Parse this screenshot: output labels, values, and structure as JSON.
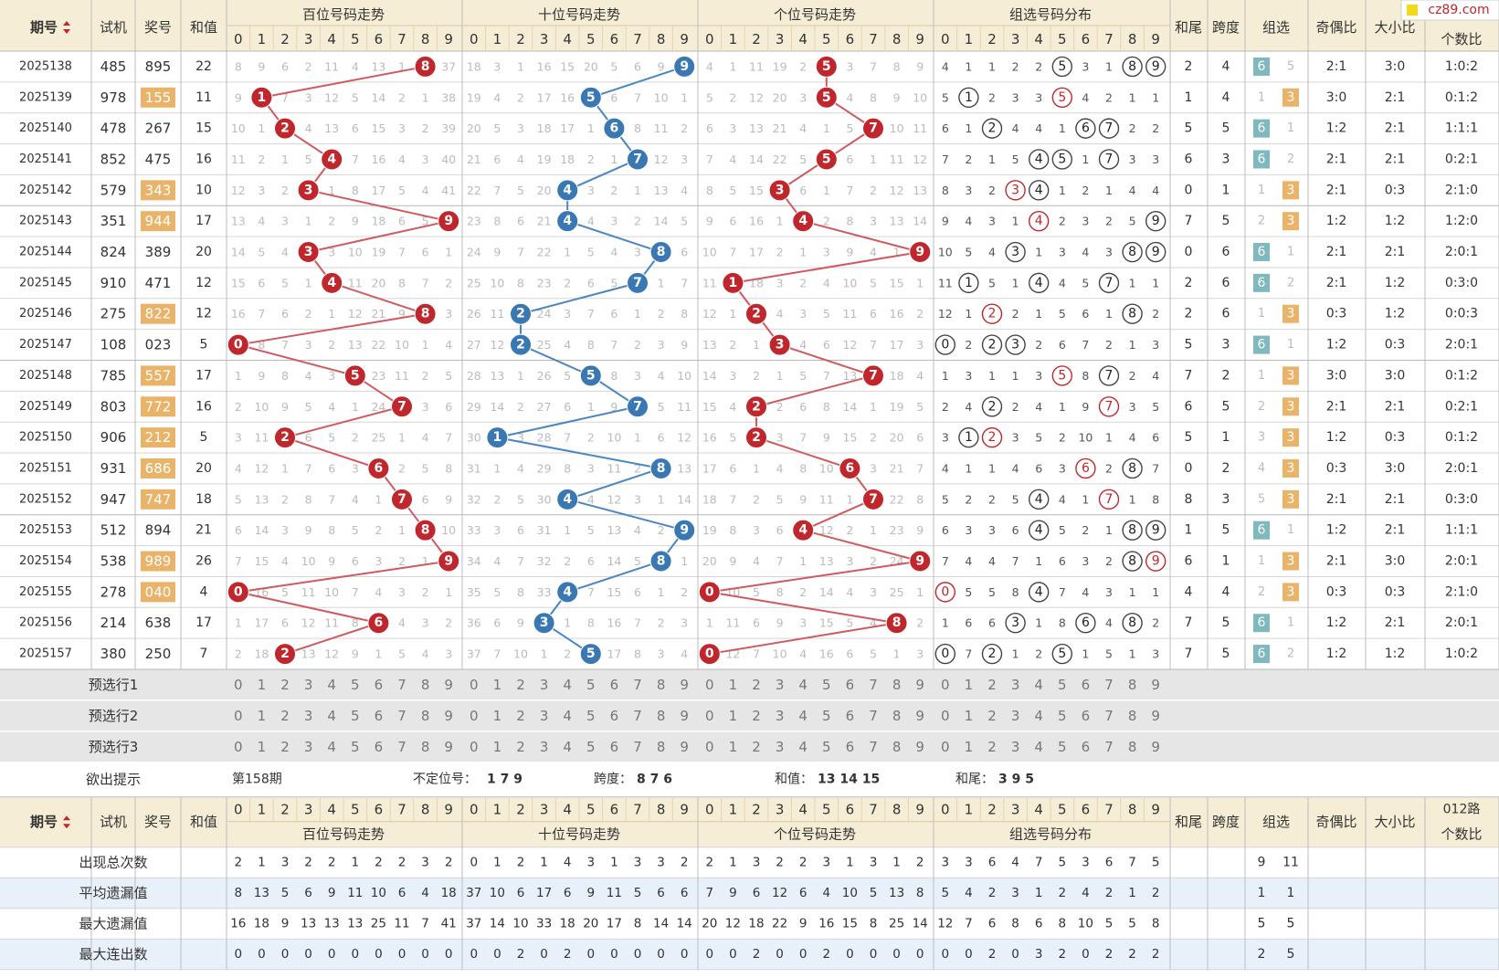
{
  "watermark": "cz89.com",
  "header": {
    "period": "期号",
    "trial": "试机",
    "prize": "奖号",
    "sum": "和值",
    "hundreds": "百位号码走势",
    "tens": "十位号码走势",
    "units": "个位号码走势",
    "group": "组选号码分布",
    "sum_tail": "和尾",
    "span": "跨度",
    "group_sel": "组选",
    "odd_even": "奇偶比",
    "big_small": "大小比",
    "road012_top": "012路",
    "road012_bottom": "个数比",
    "digits": [
      "0",
      "1",
      "2",
      "3",
      "4",
      "5",
      "6",
      "7",
      "8",
      "9"
    ]
  },
  "colors": {
    "red": "#c0272d",
    "blue": "#3a78b4",
    "header_bg": "#f5edd5",
    "highlight": "#e9b46a",
    "teal": "#7fb9be"
  },
  "rows": [
    {
      "period": "2025138",
      "trial": "485",
      "prize": "895",
      "sum": "22",
      "tail": "2",
      "span": "4",
      "g6": "6",
      "g3": "5",
      "oe": "2:1",
      "bs": "3:0",
      "r012": "1:0:2",
      "h": [
        8,
        9,
        6,
        2,
        11,
        4,
        13,
        1,
        "8",
        37
      ],
      "t": [
        18,
        3,
        1,
        16,
        15,
        20,
        5,
        6,
        9,
        "9"
      ],
      "u": [
        4,
        1,
        11,
        19,
        2,
        "5",
        3,
        7,
        8,
        9
      ],
      "g": [
        4,
        1,
        1,
        2,
        2,
        "5",
        3,
        1,
        "8",
        "9"
      ]
    },
    {
      "period": "2025139",
      "trial": "978",
      "prize": "155",
      "sum": "11",
      "tail": "1",
      "span": "4",
      "g6": "1",
      "g3": "3",
      "oe": "3:0",
      "bs": "2:1",
      "r012": "0:1:2",
      "h": [
        9,
        "1",
        7,
        3,
        12,
        5,
        14,
        2,
        1,
        38
      ],
      "t": [
        19,
        4,
        2,
        17,
        16,
        "5",
        6,
        7,
        10,
        1
      ],
      "u": [
        5,
        2,
        12,
        20,
        3,
        "5",
        4,
        8,
        9,
        10
      ],
      "g": [
        5,
        "1",
        2,
        3,
        3,
        "5",
        4,
        2,
        1,
        1
      ]
    },
    {
      "period": "2025140",
      "trial": "478",
      "prize": "267",
      "sum": "15",
      "tail": "5",
      "span": "5",
      "g6": "6",
      "g3": "1",
      "oe": "1:2",
      "bs": "2:1",
      "r012": "1:1:1",
      "h": [
        10,
        1,
        "2",
        4,
        13,
        6,
        15,
        3,
        2,
        39
      ],
      "t": [
        20,
        5,
        3,
        18,
        17,
        1,
        "6",
        8,
        11,
        2
      ],
      "u": [
        6,
        3,
        13,
        21,
        4,
        1,
        5,
        "7",
        10,
        11
      ],
      "g": [
        6,
        1,
        "2",
        4,
        4,
        1,
        "6",
        "7",
        2,
        2
      ]
    },
    {
      "period": "2025141",
      "trial": "852",
      "prize": "475",
      "sum": "16",
      "tail": "6",
      "span": "3",
      "g6": "6",
      "g3": "2",
      "oe": "2:1",
      "bs": "2:1",
      "r012": "0:2:1",
      "h": [
        11,
        2,
        1,
        5,
        "4",
        7,
        16,
        4,
        3,
        40
      ],
      "t": [
        21,
        6,
        4,
        19,
        18,
        2,
        1,
        "7",
        12,
        3
      ],
      "u": [
        7,
        4,
        14,
        22,
        5,
        "5",
        6,
        1,
        11,
        12
      ],
      "g": [
        7,
        2,
        1,
        5,
        "4",
        "5",
        1,
        "7",
        3,
        3
      ]
    },
    {
      "period": "2025142",
      "trial": "579",
      "prize": "343",
      "sum": "10",
      "tail": "0",
      "span": "1",
      "g6": "1",
      "g3": "3",
      "oe": "2:1",
      "bs": "0:3",
      "r012": "2:1:0",
      "h": [
        12,
        3,
        2,
        "3",
        1,
        8,
        17,
        5,
        4,
        41
      ],
      "t": [
        22,
        7,
        5,
        20,
        "4",
        3,
        2,
        1,
        13,
        4
      ],
      "u": [
        8,
        5,
        15,
        "3",
        6,
        1,
        7,
        2,
        12,
        13
      ],
      "g": [
        8,
        3,
        2,
        "3",
        "4",
        1,
        2,
        1,
        4,
        4
      ]
    },
    {
      "period": "2025143",
      "trial": "351",
      "prize": "944",
      "sum": "17",
      "tail": "7",
      "span": "5",
      "g6": "2",
      "g3": "3",
      "oe": "1:2",
      "bs": "1:2",
      "r012": "1:2:0",
      "h": [
        13,
        4,
        3,
        1,
        2,
        9,
        18,
        6,
        5,
        "9"
      ],
      "t": [
        23,
        8,
        6,
        21,
        "4",
        4,
        3,
        2,
        14,
        5
      ],
      "u": [
        9,
        6,
        16,
        1,
        "4",
        2,
        8,
        3,
        13,
        14
      ],
      "g": [
        9,
        4,
        3,
        1,
        "4",
        2,
        3,
        2,
        5,
        "9"
      ]
    },
    {
      "period": "2025144",
      "trial": "824",
      "prize": "389",
      "sum": "20",
      "tail": "0",
      "span": "6",
      "g6": "6",
      "g3": "1",
      "oe": "2:1",
      "bs": "2:1",
      "r012": "2:0:1",
      "h": [
        14,
        5,
        4,
        "3",
        3,
        10,
        19,
        7,
        6,
        1
      ],
      "t": [
        24,
        9,
        7,
        22,
        1,
        5,
        4,
        3,
        "8",
        6
      ],
      "u": [
        10,
        7,
        17,
        2,
        1,
        3,
        9,
        4,
        1,
        "9"
      ],
      "g": [
        10,
        5,
        4,
        "3",
        1,
        3,
        4,
        3,
        "8",
        "9"
      ]
    },
    {
      "period": "2025145",
      "trial": "910",
      "prize": "471",
      "sum": "12",
      "tail": "2",
      "span": "6",
      "g6": "6",
      "g3": "2",
      "oe": "2:1",
      "bs": "1:2",
      "r012": "0:3:0",
      "h": [
        15,
        6,
        5,
        1,
        "4",
        11,
        20,
        8,
        7,
        2
      ],
      "t": [
        25,
        10,
        8,
        23,
        2,
        6,
        5,
        "7",
        1,
        7
      ],
      "u": [
        11,
        "1",
        18,
        3,
        2,
        4,
        10,
        5,
        15,
        1
      ],
      "g": [
        11,
        "1",
        5,
        1,
        "4",
        4,
        5,
        "7",
        1,
        1
      ]
    },
    {
      "period": "2025146",
      "trial": "275",
      "prize": "822",
      "sum": "12",
      "tail": "2",
      "span": "6",
      "g6": "1",
      "g3": "3",
      "oe": "0:3",
      "bs": "1:2",
      "r012": "0:0:3",
      "h": [
        16,
        7,
        6,
        2,
        1,
        12,
        21,
        9,
        "8",
        3
      ],
      "t": [
        26,
        11,
        "2",
        24,
        3,
        7,
        6,
        1,
        2,
        8
      ],
      "u": [
        12,
        1,
        "2",
        4,
        3,
        5,
        11,
        6,
        16,
        2
      ],
      "g": [
        12,
        1,
        "2",
        2,
        1,
        5,
        6,
        1,
        "8",
        2
      ]
    },
    {
      "period": "2025147",
      "trial": "108",
      "prize": "023",
      "sum": "5",
      "tail": "5",
      "span": "3",
      "g6": "6",
      "g3": "1",
      "oe": "1:2",
      "bs": "0:3",
      "r012": "2:0:1",
      "h": [
        "0",
        8,
        7,
        3,
        2,
        13,
        22,
        10,
        1,
        4
      ],
      "t": [
        27,
        12,
        "2",
        25,
        4,
        8,
        7,
        2,
        3,
        9
      ],
      "u": [
        13,
        2,
        1,
        "3",
        4,
        6,
        12,
        7,
        17,
        3
      ],
      "g": [
        "0",
        2,
        "2",
        "3",
        2,
        6,
        7,
        2,
        1,
        3
      ]
    },
    {
      "period": "2025148",
      "trial": "785",
      "prize": "557",
      "sum": "17",
      "tail": "7",
      "span": "2",
      "g6": "1",
      "g3": "3",
      "oe": "3:0",
      "bs": "3:0",
      "r012": "0:1:2",
      "h": [
        1,
        9,
        8,
        4,
        3,
        "5",
        23,
        11,
        2,
        5
      ],
      "t": [
        28,
        13,
        1,
        26,
        5,
        "5",
        8,
        3,
        4,
        10
      ],
      "u": [
        14,
        3,
        2,
        1,
        5,
        7,
        13,
        "7",
        18,
        4
      ],
      "g": [
        1,
        3,
        1,
        1,
        3,
        "5",
        8,
        "7",
        2,
        4
      ]
    },
    {
      "period": "2025149",
      "trial": "803",
      "prize": "772",
      "sum": "16",
      "tail": "6",
      "span": "5",
      "g6": "2",
      "g3": "3",
      "oe": "2:1",
      "bs": "2:1",
      "r012": "0:2:1",
      "h": [
        2,
        10,
        9,
        5,
        4,
        1,
        24,
        "7",
        3,
        6
      ],
      "t": [
        29,
        14,
        2,
        27,
        6,
        1,
        9,
        "7",
        5,
        11
      ],
      "u": [
        15,
        4,
        "2",
        2,
        6,
        8,
        14,
        1,
        19,
        5
      ],
      "g": [
        2,
        4,
        "2",
        2,
        4,
        1,
        9,
        "7",
        3,
        5
      ]
    },
    {
      "period": "2025150",
      "trial": "906",
      "prize": "212",
      "sum": "5",
      "tail": "5",
      "span": "1",
      "g6": "3",
      "g3": "3",
      "oe": "1:2",
      "bs": "0:3",
      "r012": "0:1:2",
      "h": [
        3,
        11,
        "2",
        6,
        5,
        2,
        25,
        1,
        4,
        7
      ],
      "t": [
        30,
        "1",
        3,
        28,
        7,
        2,
        10,
        1,
        6,
        12
      ],
      "u": [
        16,
        5,
        "2",
        3,
        7,
        9,
        15,
        2,
        20,
        6
      ],
      "g": [
        3,
        "1",
        "2",
        3,
        5,
        2,
        10,
        1,
        4,
        6
      ]
    },
    {
      "period": "2025151",
      "trial": "931",
      "prize": "686",
      "sum": "20",
      "tail": "0",
      "span": "2",
      "g6": "4",
      "g3": "3",
      "oe": "0:3",
      "bs": "3:0",
      "r012": "2:0:1",
      "h": [
        4,
        12,
        1,
        7,
        6,
        3,
        "6",
        2,
        5,
        8
      ],
      "t": [
        31,
        1,
        4,
        29,
        8,
        3,
        11,
        2,
        "8",
        13
      ],
      "u": [
        17,
        6,
        1,
        4,
        8,
        10,
        "6",
        3,
        21,
        7
      ],
      "g": [
        4,
        1,
        1,
        4,
        6,
        3,
        "6",
        2,
        "8",
        7
      ]
    },
    {
      "period": "2025152",
      "trial": "947",
      "prize": "747",
      "sum": "18",
      "tail": "8",
      "span": "3",
      "g6": "5",
      "g3": "3",
      "oe": "2:1",
      "bs": "2:1",
      "r012": "0:3:0",
      "h": [
        5,
        13,
        2,
        8,
        7,
        4,
        1,
        "7",
        6,
        9
      ],
      "t": [
        32,
        2,
        5,
        30,
        "4",
        4,
        12,
        3,
        1,
        14
      ],
      "u": [
        18,
        7,
        2,
        5,
        9,
        11,
        1,
        "7",
        22,
        8
      ],
      "g": [
        5,
        2,
        2,
        5,
        "4",
        4,
        1,
        "7",
        1,
        8
      ]
    },
    {
      "period": "2025153",
      "trial": "512",
      "prize": "894",
      "sum": "21",
      "tail": "1",
      "span": "5",
      "g6": "6",
      "g3": "1",
      "oe": "1:2",
      "bs": "2:1",
      "r012": "1:1:1",
      "h": [
        6,
        14,
        3,
        9,
        8,
        5,
        2,
        1,
        "8",
        10
      ],
      "t": [
        33,
        3,
        6,
        31,
        1,
        5,
        13,
        4,
        2,
        "9"
      ],
      "u": [
        19,
        8,
        3,
        6,
        "4",
        12,
        2,
        1,
        23,
        9
      ],
      "g": [
        6,
        3,
        3,
        6,
        "4",
        5,
        2,
        1,
        "8",
        "9"
      ]
    },
    {
      "period": "2025154",
      "trial": "538",
      "prize": "989",
      "sum": "26",
      "tail": "6",
      "span": "1",
      "g6": "1",
      "g3": "3",
      "oe": "2:1",
      "bs": "3:0",
      "r012": "2:0:1",
      "h": [
        7,
        15,
        4,
        10,
        9,
        6,
        3,
        2,
        1,
        "9"
      ],
      "t": [
        34,
        4,
        7,
        32,
        2,
        6,
        14,
        5,
        "8",
        1
      ],
      "u": [
        20,
        9,
        4,
        7,
        1,
        13,
        3,
        2,
        24,
        "9"
      ],
      "g": [
        7,
        4,
        4,
        7,
        1,
        6,
        3,
        2,
        "8",
        "9"
      ]
    },
    {
      "period": "2025155",
      "trial": "278",
      "prize": "040",
      "sum": "4",
      "tail": "4",
      "span": "4",
      "g6": "2",
      "g3": "3",
      "oe": "0:3",
      "bs": "0:3",
      "r012": "2:1:0",
      "h": [
        "0",
        16,
        5,
        11,
        10,
        7,
        4,
        3,
        2,
        1
      ],
      "t": [
        35,
        5,
        8,
        33,
        "4",
        7,
        15,
        6,
        1,
        2
      ],
      "u": [
        "0",
        10,
        5,
        8,
        2,
        14,
        4,
        3,
        25,
        1
      ],
      "g": [
        "0",
        5,
        5,
        8,
        "4",
        7,
        4,
        3,
        1,
        1
      ]
    },
    {
      "period": "2025156",
      "trial": "214",
      "prize": "638",
      "sum": "17",
      "tail": "7",
      "span": "5",
      "g6": "6",
      "g3": "1",
      "oe": "1:2",
      "bs": "2:1",
      "r012": "2:0:1",
      "h": [
        1,
        17,
        6,
        12,
        11,
        8,
        "6",
        4,
        3,
        2
      ],
      "t": [
        36,
        6,
        9,
        "3",
        1,
        8,
        16,
        7,
        2,
        3
      ],
      "u": [
        1,
        11,
        6,
        9,
        3,
        15,
        5,
        4,
        "8",
        2
      ],
      "g": [
        1,
        6,
        6,
        "3",
        1,
        8,
        "6",
        4,
        "8",
        2
      ]
    },
    {
      "period": "2025157",
      "trial": "380",
      "prize": "250",
      "sum": "7",
      "tail": "7",
      "span": "5",
      "g6": "6",
      "g3": "2",
      "oe": "1:2",
      "bs": "1:2",
      "r012": "1:0:2",
      "h": [
        2,
        18,
        "2",
        13,
        12,
        9,
        1,
        5,
        4,
        3
      ],
      "t": [
        37,
        7,
        10,
        1,
        2,
        "5",
        17,
        8,
        3,
        4
      ],
      "u": [
        "0",
        12,
        7,
        10,
        4,
        16,
        6,
        5,
        1,
        3
      ],
      "g": [
        "0",
        7,
        "2",
        1,
        2,
        "5",
        1,
        5,
        1,
        3
      ]
    }
  ],
  "preselect": [
    "预选行1",
    "预选行2",
    "预选行3"
  ],
  "hint": {
    "label": "欲出提示",
    "issue": "第158期",
    "unfixed_label": "不定位号：",
    "unfixed": "1 7 9",
    "span_label": "跨度：",
    "span": "8 7 6",
    "sum_label": "和值：",
    "sum": "13 14 15",
    "tail_label": "和尾：",
    "tail": "3 9 5"
  },
  "stats": [
    {
      "label": "出现总次数",
      "h": [
        2,
        1,
        3,
        2,
        2,
        1,
        2,
        2,
        3,
        2
      ],
      "t": [
        0,
        1,
        2,
        1,
        4,
        3,
        1,
        3,
        3,
        2
      ],
      "u": [
        2,
        1,
        3,
        2,
        2,
        3,
        1,
        3,
        1,
        2
      ],
      "g": [
        3,
        3,
        6,
        4,
        7,
        5,
        3,
        6,
        7,
        5
      ],
      "g6": "9",
      "g3": "11"
    },
    {
      "label": "平均遗漏值",
      "h": [
        8,
        13,
        5,
        6,
        9,
        11,
        10,
        6,
        4,
        18
      ],
      "t": [
        37,
        10,
        6,
        17,
        6,
        9,
        11,
        5,
        6,
        6
      ],
      "u": [
        7,
        9,
        6,
        12,
        6,
        4,
        10,
        5,
        13,
        8
      ],
      "g": [
        5,
        4,
        2,
        3,
        1,
        2,
        4,
        2,
        1,
        2
      ],
      "g6": "1",
      "g3": "1"
    },
    {
      "label": "最大遗漏值",
      "h": [
        16,
        18,
        9,
        13,
        13,
        13,
        25,
        11,
        7,
        41
      ],
      "t": [
        37,
        14,
        10,
        33,
        18,
        20,
        17,
        8,
        14,
        14
      ],
      "u": [
        20,
        12,
        18,
        22,
        9,
        16,
        15,
        8,
        25,
        14
      ],
      "g": [
        12,
        7,
        6,
        8,
        6,
        8,
        10,
        5,
        5,
        8
      ],
      "g6": "5",
      "g3": "5"
    },
    {
      "label": "最大连出数",
      "h": [
        0,
        0,
        0,
        0,
        0,
        0,
        0,
        0,
        0,
        0
      ],
      "t": [
        0,
        0,
        2,
        0,
        2,
        0,
        0,
        0,
        0,
        0
      ],
      "u": [
        0,
        0,
        2,
        0,
        0,
        2,
        0,
        0,
        0,
        0
      ],
      "g": [
        0,
        0,
        2,
        0,
        3,
        2,
        0,
        2,
        2,
        2
      ],
      "g6": "2",
      "g3": "5"
    }
  ]
}
